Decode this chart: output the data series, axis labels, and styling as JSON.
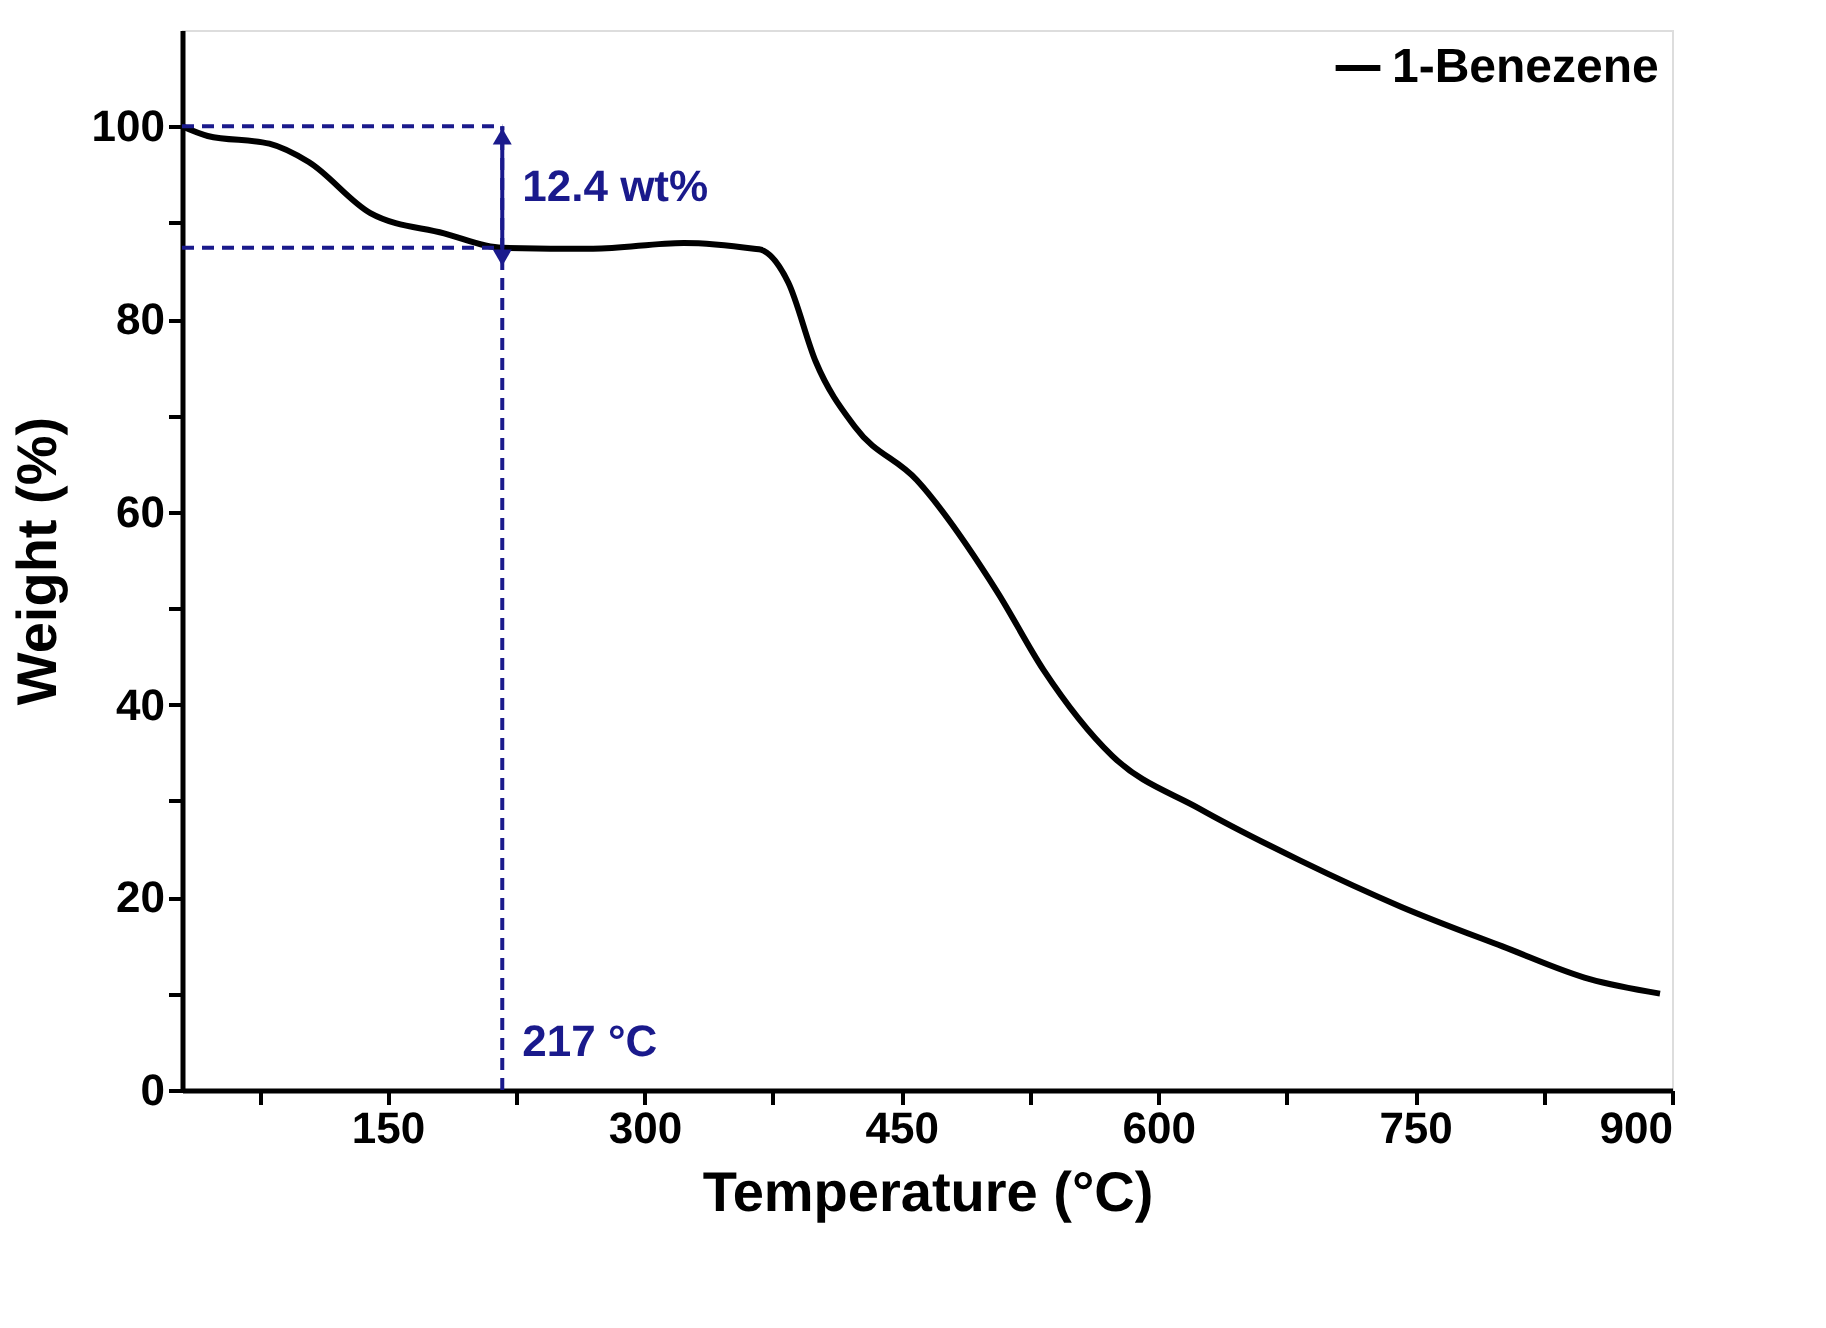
{
  "chart_data": {
    "type": "line",
    "xlabel": "Temperature (°C)",
    "ylabel": "Weight (%)",
    "xlim": [
      30,
      900
    ],
    "ylim": [
      0,
      110
    ],
    "xticks": [
      {
        "value": 75,
        "label": null
      },
      150,
      {
        "value": 225,
        "label": null
      },
      300,
      {
        "value": 375,
        "label": null
      },
      450,
      {
        "value": 525,
        "label": null
      },
      600,
      {
        "value": 675,
        "label": null
      },
      750,
      {
        "value": 825,
        "label": null
      },
      900
    ],
    "yticks": [
      0,
      {
        "value": 10,
        "label": null
      },
      20,
      {
        "value": 30,
        "label": null
      },
      40,
      {
        "value": 50,
        "label": null
      },
      60,
      {
        "value": 70,
        "label": null
      },
      80,
      {
        "value": 90,
        "label": null
      },
      100
    ],
    "series": [
      {
        "name": "1-Benezene",
        "color": "#000000",
        "x": [
          30,
          45,
          81,
          104,
          140,
          183,
          217,
          270,
          323,
          364,
          368,
          384,
          400,
          423,
          459,
          506,
          533,
          573,
          624,
          683,
          742,
          801,
          852,
          893
        ],
        "values": [
          100,
          99.0,
          98.2,
          96.3,
          91.0,
          88.9,
          87.4,
          87.3,
          87.9,
          87.3,
          87.2,
          83.8,
          75.6,
          68.8,
          63.3,
          51.7,
          43.6,
          34.7,
          29.2,
          23.8,
          19.0,
          14.9,
          11.5,
          10.0
        ]
      }
    ],
    "ref_lines": [
      {
        "axis": "y",
        "value": 100,
        "color": "#1a1a8c",
        "line_style": "dashed"
      },
      {
        "axis": "y",
        "value": 87.4,
        "color": "#1a1a8c",
        "line_style": "dashed"
      },
      {
        "axis": "x",
        "value": 217,
        "color": "#1a1a8c",
        "line_style": "dashed"
      }
    ],
    "annotations": [
      {
        "text": "12.4 wt%",
        "x": 217,
        "y": 93.7
      },
      {
        "text": "217 °C",
        "x": 217,
        "y": 5
      }
    ],
    "legend": "top right",
    "grid": false,
    "marker": "none",
    "line_style": "solid"
  }
}
